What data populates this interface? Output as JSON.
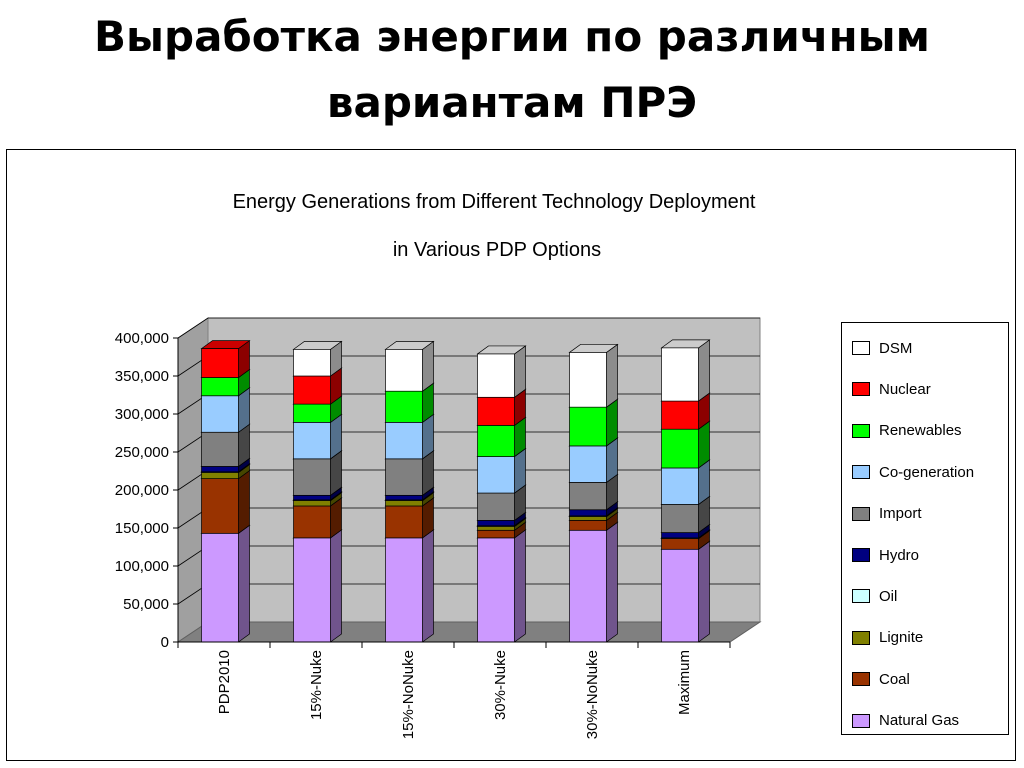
{
  "slide": {
    "title_line1": "Выработка энергии по различным",
    "title_line2": "вариантам ПРЭ"
  },
  "chart_data": {
    "type": "bar",
    "stacked": true,
    "three_d": true,
    "title_line1": "Energy Generations from Different Technology Deployment",
    "title_line2": "in Various PDP Options",
    "xlabel": "",
    "ylabel": "",
    "ylim": [
      0,
      400000
    ],
    "ytick_labels": [
      "0",
      "50,000",
      "100,000",
      "150,000",
      "200,000",
      "250,000",
      "300,000",
      "350,000",
      "400,000"
    ],
    "categories": [
      "PDP2010",
      "15%-Nuke",
      "15%-NoNuke",
      "30%-Nuke",
      "30%-NoNuke",
      "Maximum"
    ],
    "legend_position": "right",
    "grid": true,
    "series": [
      {
        "name": "Natural Gas",
        "color": "#cc99ff",
        "values": [
          143000,
          137000,
          137000,
          137000,
          147000,
          122000
        ]
      },
      {
        "name": "Coal",
        "color": "#993300",
        "values": [
          72000,
          42000,
          42000,
          10000,
          13000,
          14000
        ]
      },
      {
        "name": "Lignite",
        "color": "#808000",
        "values": [
          8000,
          7000,
          7000,
          5000,
          5000,
          0
        ]
      },
      {
        "name": "Oil",
        "color": "#ccffff",
        "values": [
          1000,
          1000,
          1000,
          1000,
          1000,
          1000
        ]
      },
      {
        "name": "Hydro",
        "color": "#000080",
        "values": [
          7000,
          6000,
          6000,
          7000,
          8000,
          7000
        ]
      },
      {
        "name": "Import",
        "color": "#808080",
        "values": [
          45000,
          48000,
          48000,
          36000,
          36000,
          37000
        ]
      },
      {
        "name": "Co-generation",
        "color": "#99ccff",
        "values": [
          48000,
          48000,
          48000,
          48000,
          48000,
          48000
        ]
      },
      {
        "name": "Renewables",
        "color": "#00ff00",
        "values": [
          24000,
          24000,
          41000,
          41000,
          51000,
          51000
        ]
      },
      {
        "name": "Nuclear",
        "color": "#ff0000",
        "values": [
          38000,
          37000,
          0,
          37000,
          0,
          37000
        ]
      },
      {
        "name": "DSM",
        "color": "#ffffff",
        "values": [
          0,
          35000,
          55000,
          57000,
          72000,
          70000
        ]
      }
    ]
  }
}
